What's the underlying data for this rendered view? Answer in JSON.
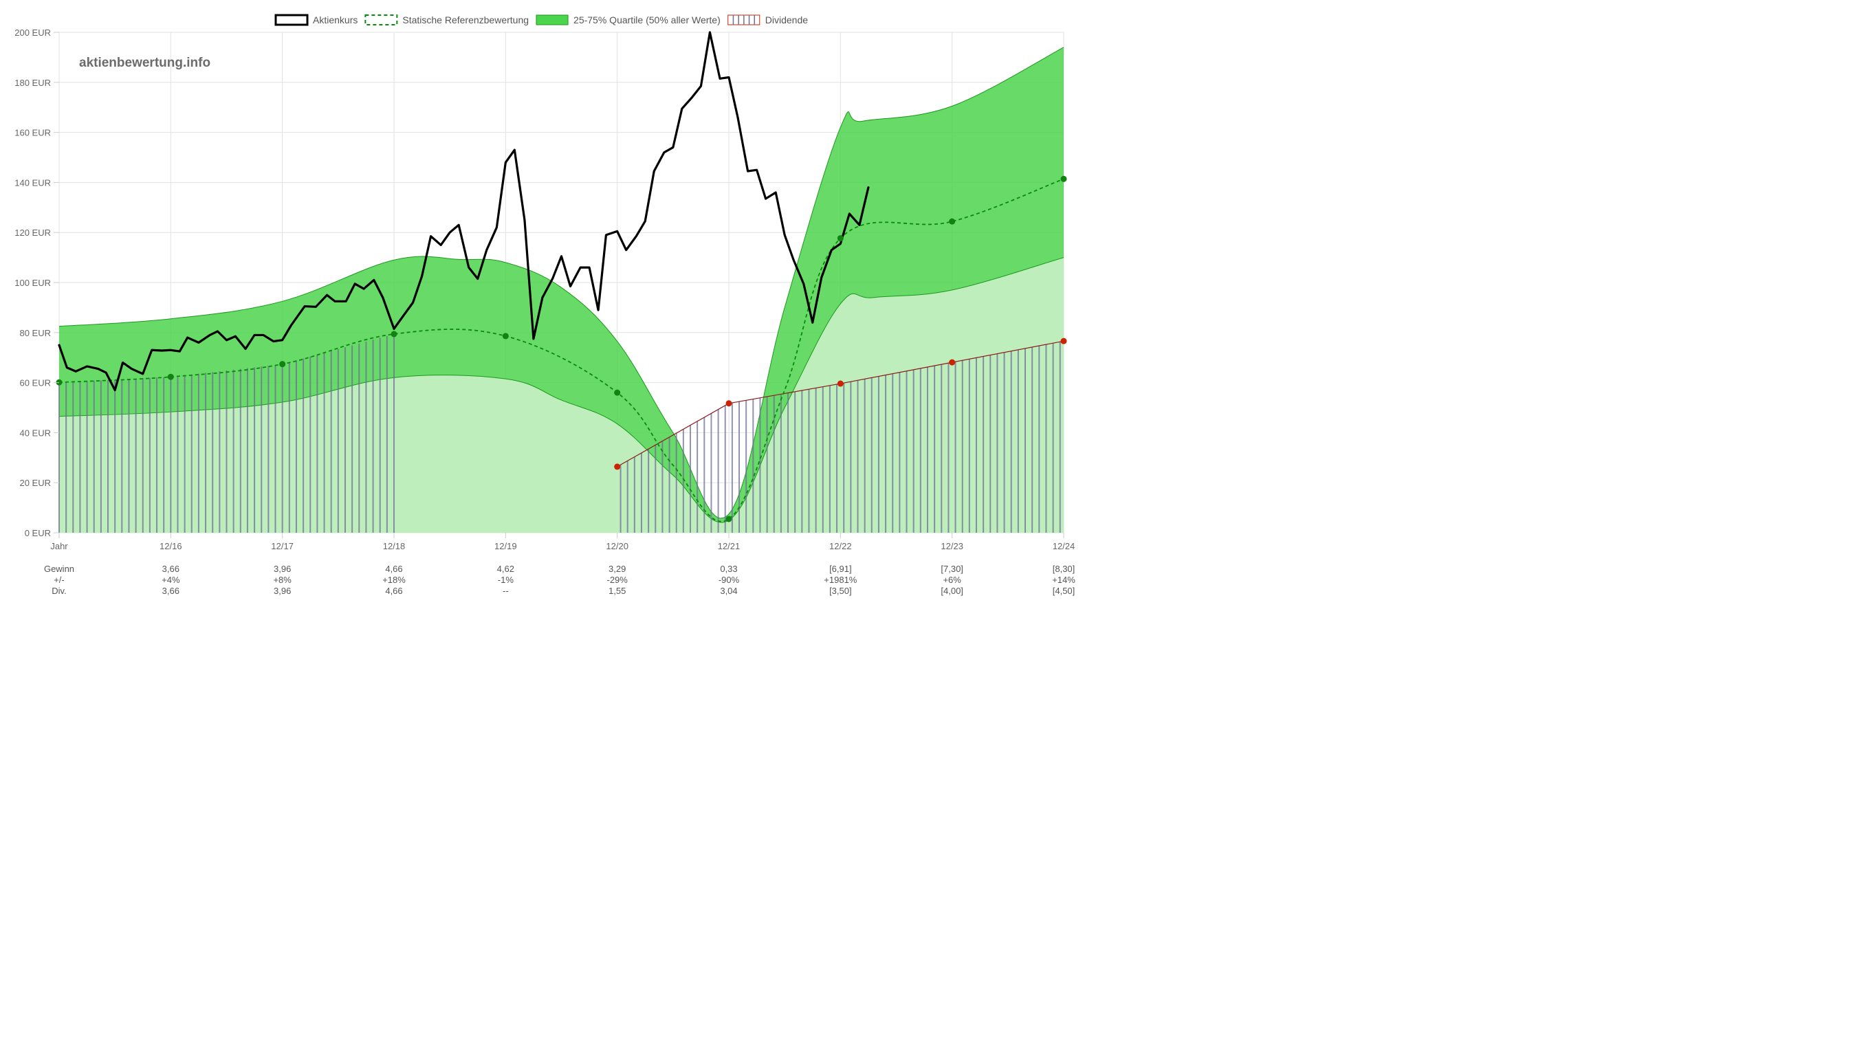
{
  "colors": {
    "price": "#000000",
    "reference": "#0a8a0a",
    "reference_dot": "#128212",
    "quartile_fill": "#4cd44c",
    "quartile_stroke": "#1a9a1a",
    "lower_fill": "#bdeebb",
    "dividend_line": "#8b1a1a",
    "dividend_dot": "#cc2200",
    "dividend_hatch": "#6e6f98",
    "grid": "#e2e2e2",
    "text": "#666666"
  },
  "watermark": "aktienbewertung.info",
  "chart_data": {
    "type": "line",
    "legend": [
      {
        "key": "price",
        "label": "Aktienkurs"
      },
      {
        "key": "reference",
        "label": "Statische Referenzbewertung"
      },
      {
        "key": "quartile",
        "label": "25-75% Quartile (50% aller Werte)"
      },
      {
        "key": "dividend",
        "label": "Dividende"
      }
    ],
    "legend_position": "top",
    "grid": true,
    "x_ticks": [
      "Jahr",
      "12/16",
      "12/17",
      "12/18",
      "12/19",
      "12/20",
      "12/21",
      "12/22",
      "12/23",
      "12/24"
    ],
    "y_ticks": [
      "0 EUR",
      "20 EUR",
      "40 EUR",
      "60 EUR",
      "80 EUR",
      "100 EUR",
      "120 EUR",
      "140 EUR",
      "160 EUR",
      "180 EUR",
      "200 EUR"
    ],
    "ylim": [
      0,
      200
    ],
    "upper_quartile": [
      [
        0,
        82.5
      ],
      [
        1,
        85.5
      ],
      [
        2,
        92.5
      ],
      [
        3,
        109
      ],
      [
        3.6,
        109.2
      ],
      [
        4,
        108
      ],
      [
        4.5,
        98
      ],
      [
        5,
        76.5
      ],
      [
        5.5,
        40
      ],
      [
        6,
        7.5
      ],
      [
        6.5,
        90
      ],
      [
        7,
        162
      ],
      [
        7.2,
        164.5
      ],
      [
        8,
        170.5
      ],
      [
        9,
        194
      ]
    ],
    "lower_quartile": [
      [
        0,
        46.5
      ],
      [
        1,
        48.3
      ],
      [
        2,
        52.2
      ],
      [
        3,
        62
      ],
      [
        4,
        61.5
      ],
      [
        4.5,
        53
      ],
      [
        5,
        43.5
      ],
      [
        5.5,
        23
      ],
      [
        6,
        5
      ],
      [
        6.5,
        50
      ],
      [
        7,
        91.5
      ],
      [
        7.3,
        94
      ],
      [
        8,
        97
      ],
      [
        9,
        110
      ]
    ],
    "reference_line": [
      [
        0,
        60.1
      ],
      [
        1,
        62.3
      ],
      [
        2,
        67.4
      ],
      [
        3,
        79.4
      ],
      [
        4,
        78.6
      ],
      [
        5,
        56
      ],
      [
        5.5,
        27
      ],
      [
        6,
        5.5
      ],
      [
        6.5,
        57
      ],
      [
        7,
        117.7
      ],
      [
        8,
        124.4
      ],
      [
        9,
        141.4
      ]
    ],
    "dividend_line": [
      [
        5,
        26.4
      ],
      [
        6,
        51.7
      ],
      [
        7,
        59.6
      ],
      [
        8,
        68.1
      ],
      [
        9,
        76.6
      ]
    ],
    "dividend_dot_points": [
      [
        5,
        26.4
      ],
      [
        6,
        51.7
      ],
      [
        7,
        59.6
      ],
      [
        8,
        68.1
      ],
      [
        9,
        76.6
      ]
    ],
    "reference_dot_points": [
      [
        0,
        60.1
      ],
      [
        1,
        62.3
      ],
      [
        2,
        67.4
      ],
      [
        3,
        79.4
      ],
      [
        4,
        78.6
      ],
      [
        5,
        56
      ],
      [
        6,
        5.5
      ],
      [
        7,
        117.7
      ],
      [
        8,
        124.4
      ],
      [
        9,
        141.4
      ]
    ],
    "dividend_hatch_before": [
      [
        0,
        60.1
      ],
      [
        1,
        62.3
      ],
      [
        2,
        67.4
      ],
      [
        3,
        79.4
      ]
    ],
    "price_series": [
      [
        0,
        75
      ],
      [
        0.07,
        66
      ],
      [
        0.15,
        64.5
      ],
      [
        0.25,
        66.5
      ],
      [
        0.35,
        65.5
      ],
      [
        0.42,
        64
      ],
      [
        0.5,
        57
      ],
      [
        0.57,
        68
      ],
      [
        0.65,
        65.5
      ],
      [
        0.75,
        63.5
      ],
      [
        0.83,
        73
      ],
      [
        0.92,
        72.8
      ],
      [
        1.0,
        73
      ],
      [
        1.08,
        72.5
      ],
      [
        1.15,
        78
      ],
      [
        1.25,
        76
      ],
      [
        1.35,
        79
      ],
      [
        1.42,
        80.5
      ],
      [
        1.5,
        77
      ],
      [
        1.58,
        78.5
      ],
      [
        1.67,
        73.5
      ],
      [
        1.75,
        79
      ],
      [
        1.83,
        79
      ],
      [
        1.92,
        76.5
      ],
      [
        2.0,
        77
      ],
      [
        2.08,
        83
      ],
      [
        2.2,
        90.5
      ],
      [
        2.3,
        90.3
      ],
      [
        2.4,
        95
      ],
      [
        2.47,
        92.5
      ],
      [
        2.57,
        92.5
      ],
      [
        2.65,
        99.5
      ],
      [
        2.73,
        97.5
      ],
      [
        2.82,
        101
      ],
      [
        2.9,
        94
      ],
      [
        3.0,
        81.5
      ],
      [
        3.08,
        86.5
      ],
      [
        3.17,
        92
      ],
      [
        3.25,
        102.5
      ],
      [
        3.33,
        118.5
      ],
      [
        3.42,
        115
      ],
      [
        3.5,
        120
      ],
      [
        3.58,
        123
      ],
      [
        3.67,
        106
      ],
      [
        3.75,
        101.5
      ],
      [
        3.83,
        113
      ],
      [
        3.92,
        122
      ],
      [
        4.0,
        148
      ],
      [
        4.08,
        153
      ],
      [
        4.17,
        125
      ],
      [
        4.25,
        77.5
      ],
      [
        4.33,
        94
      ],
      [
        4.42,
        101.5
      ],
      [
        4.5,
        110.5
      ],
      [
        4.58,
        98.5
      ],
      [
        4.67,
        106
      ],
      [
        4.75,
        106
      ],
      [
        4.83,
        89
      ],
      [
        4.9,
        119
      ],
      [
        5.0,
        120.5
      ],
      [
        5.08,
        113
      ],
      [
        5.17,
        118.5
      ],
      [
        5.25,
        124.5
      ],
      [
        5.33,
        144.5
      ],
      [
        5.42,
        152
      ],
      [
        5.5,
        154
      ],
      [
        5.58,
        169.5
      ],
      [
        5.67,
        174
      ],
      [
        5.75,
        178.5
      ],
      [
        5.83,
        200
      ],
      [
        5.92,
        181.5
      ],
      [
        6.0,
        182
      ],
      [
        6.08,
        166
      ],
      [
        6.17,
        144.5
      ],
      [
        6.25,
        145
      ],
      [
        6.33,
        133.5
      ],
      [
        6.42,
        136
      ],
      [
        6.5,
        119
      ],
      [
        6.58,
        109
      ],
      [
        6.67,
        99.5
      ],
      [
        6.75,
        84
      ],
      [
        6.83,
        102
      ],
      [
        6.92,
        113
      ],
      [
        7.0,
        115.5
      ],
      [
        7.08,
        127.5
      ],
      [
        7.17,
        123
      ],
      [
        7.25,
        138
      ]
    ],
    "table": {
      "rows": [
        {
          "label": "Gewinn",
          "values": [
            "3,66",
            "3,96",
            "4,66",
            "4,62",
            "3,29",
            "0,33",
            "[6,91]",
            "[7,30]",
            "[8,30]"
          ]
        },
        {
          "label": "+/-",
          "values": [
            "+4%",
            "+8%",
            "+18%",
            "-1%",
            "-29%",
            "-90%",
            "+1981%",
            "+6%",
            "+14%"
          ]
        },
        {
          "label": "Div.",
          "values": [
            "3,66",
            "3,96",
            "4,66",
            "--",
            "1,55",
            "3,04",
            "[3,50]",
            "[4,00]",
            "[4,50]"
          ]
        }
      ]
    }
  }
}
